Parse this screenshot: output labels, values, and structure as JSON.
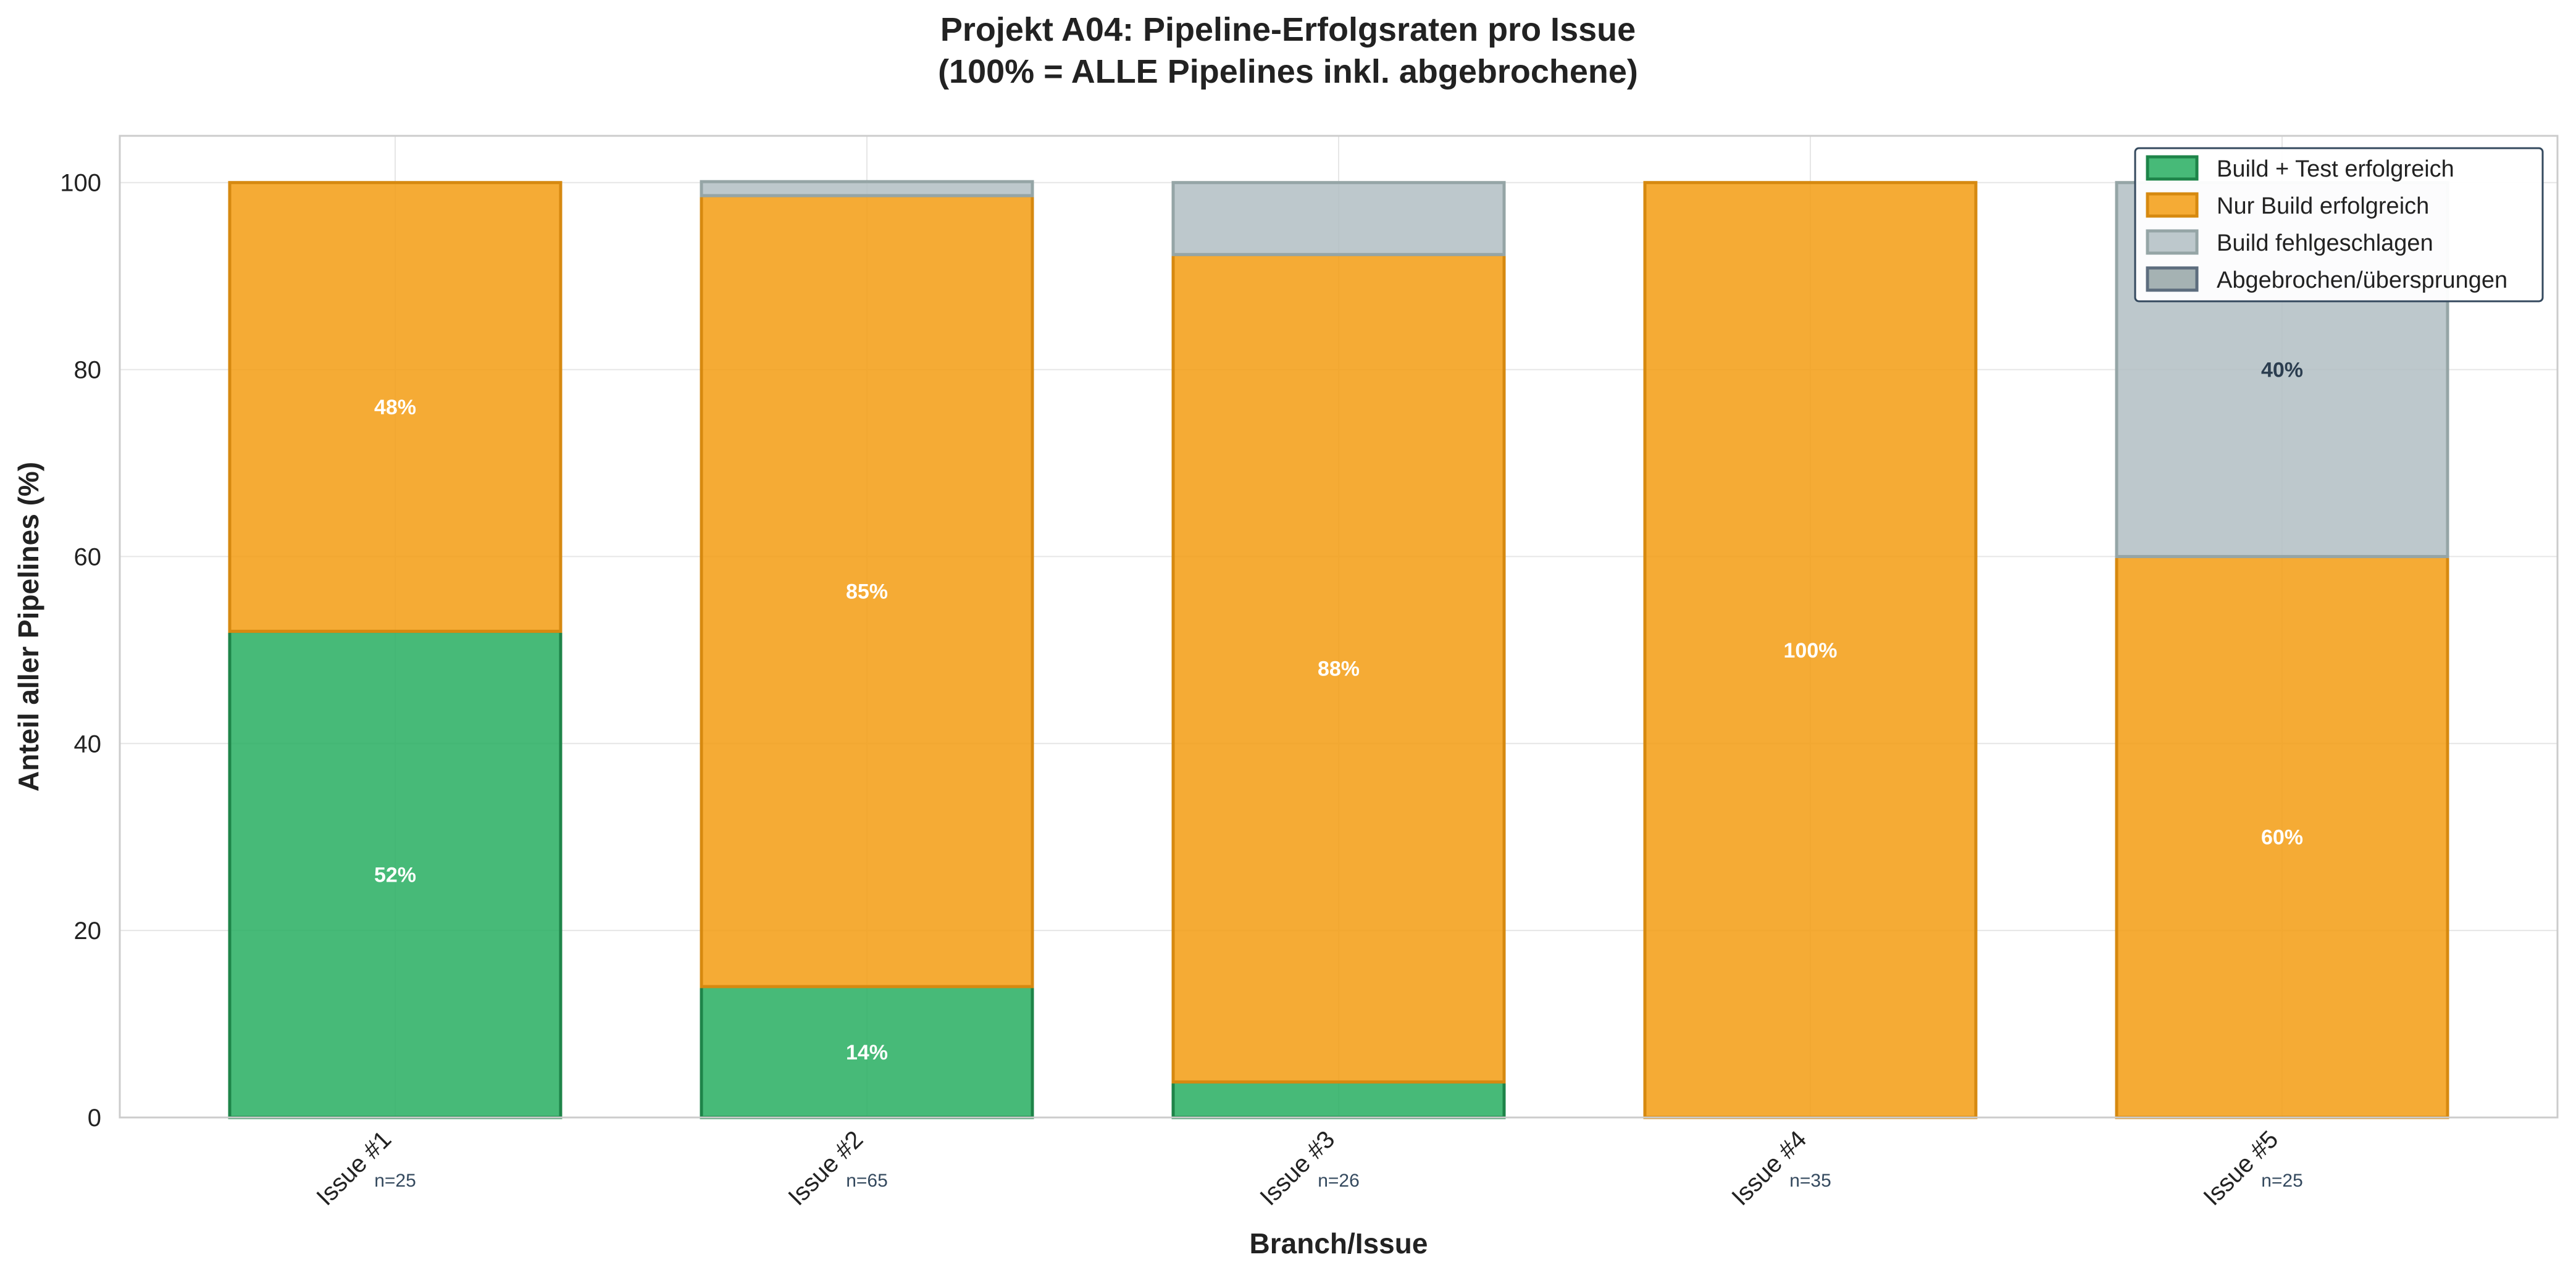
{
  "chart_data": {
    "type": "bar",
    "stacked": true,
    "title_line1": "Projekt A04: Pipeline-Erfolgsraten pro Issue",
    "title_line2": "(100% = ALLE Pipelines inkl. abgebrochene)",
    "xlabel": "Branch/Issue",
    "ylabel": "Anteil aller Pipelines (%)",
    "ylim": [
      0,
      105
    ],
    "yticks": [
      0,
      20,
      40,
      60,
      80,
      100
    ],
    "grid": true,
    "legend_position": "top-right",
    "categories": [
      "Issue #1",
      "Issue #2",
      "Issue #3",
      "Issue #4",
      "Issue #5"
    ],
    "sample_sizes": [
      "n=25",
      "n=65",
      "n=26",
      "n=35",
      "n=25"
    ],
    "series": [
      {
        "name": "Build + Test erfolgreich",
        "color": "#27ae60",
        "edge": "#1e8449",
        "label_color": "#ffffff",
        "values": [
          52,
          14,
          3.8,
          0,
          0
        ],
        "labels": [
          "52%",
          "14%",
          "",
          "",
          ""
        ]
      },
      {
        "name": "Nur Build erfolgreich",
        "color": "#f39c12",
        "edge": "#d68910",
        "label_color": "#ffffff",
        "values": [
          48,
          84.6,
          88.5,
          100,
          60
        ],
        "labels": [
          "48%",
          "85%",
          "88%",
          "100%",
          "60%"
        ]
      },
      {
        "name": "Build fehlgeschlagen",
        "color": "#b2bec3",
        "edge": "#95a5a6",
        "label_color": "#2c3e50",
        "values": [
          0,
          1.5,
          7.7,
          0,
          40
        ],
        "labels": [
          "",
          "",
          "",
          "",
          "40%"
        ]
      },
      {
        "name": "Abgebrochen/übersprungen",
        "color": "#95a5a6",
        "edge": "#5d6d7e",
        "label_color": "#2c3e50",
        "values": [
          0,
          0,
          0,
          0,
          0
        ],
        "labels": [
          "",
          "",
          "",
          "",
          ""
        ]
      }
    ]
  }
}
